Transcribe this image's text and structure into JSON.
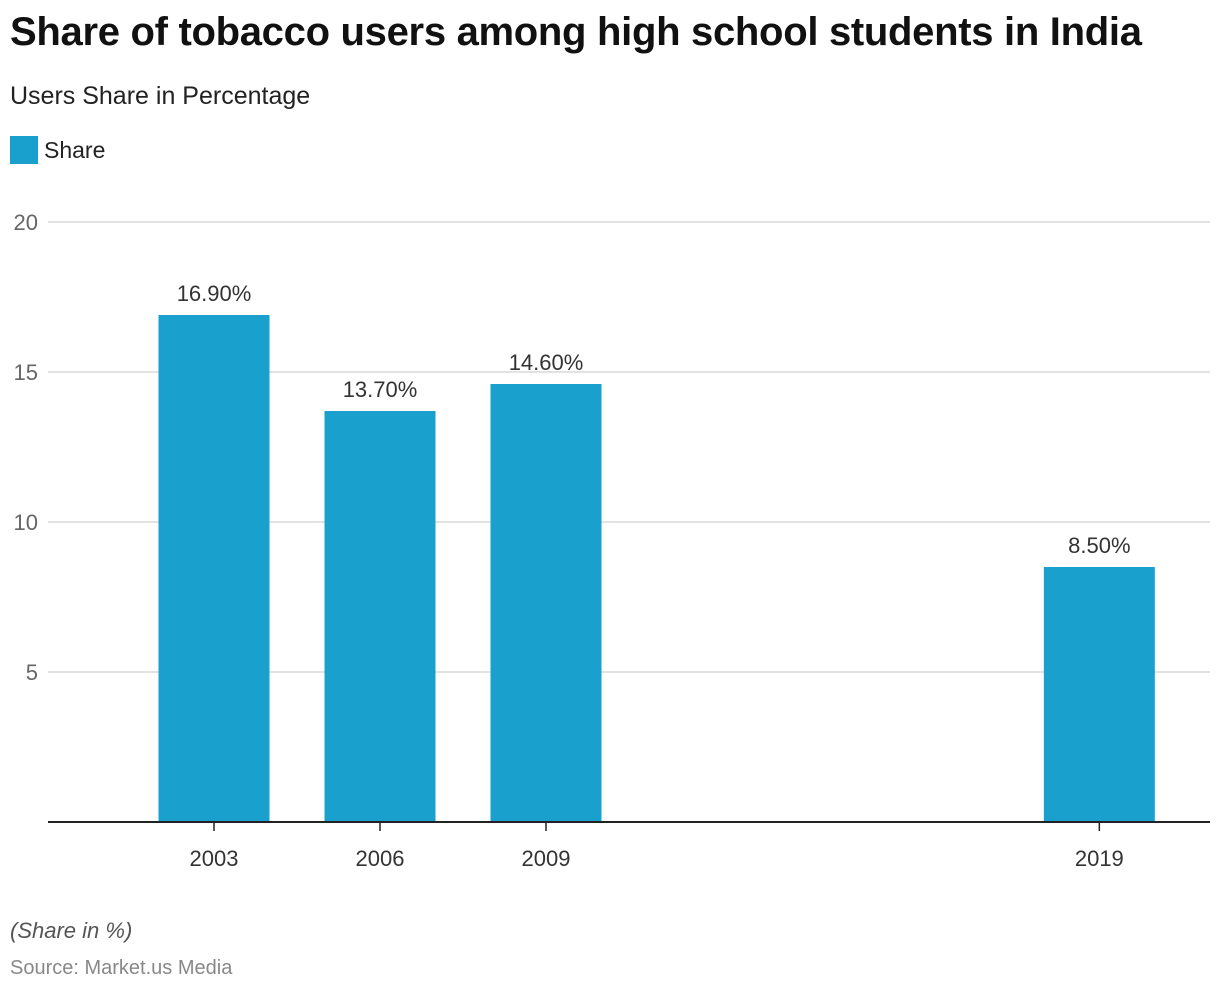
{
  "header": {
    "title": "Share of tobacco users among high school students in India",
    "subtitle": "Users Share in Percentage"
  },
  "legend": {
    "label": "Share",
    "color": "#1aa0cc"
  },
  "footer": {
    "note": "(Share in %)",
    "source": "Source: Market.us Media"
  },
  "chart_data": {
    "type": "bar",
    "title": "Share of tobacco users among high school students in India",
    "subtitle": "Users Share in Percentage",
    "xlabel": "",
    "ylabel": "",
    "x_type": "year",
    "x": [
      2003,
      2006,
      2009,
      2019
    ],
    "categories": [
      "2003",
      "2006",
      "2009",
      "2019"
    ],
    "values": [
      16.9,
      13.7,
      14.6,
      8.5
    ],
    "data_labels": [
      "16.90%",
      "13.70%",
      "14.60%",
      "8.50%"
    ],
    "x_domain": [
      2000,
      2021
    ],
    "ylim": [
      0,
      20
    ],
    "yticks": [
      5,
      10,
      15,
      20
    ],
    "grid": true,
    "legend_position": "top-left",
    "series": [
      {
        "name": "Share",
        "color": "#1aa0cc",
        "values": [
          16.9,
          13.7,
          14.6,
          8.5
        ]
      }
    ]
  }
}
